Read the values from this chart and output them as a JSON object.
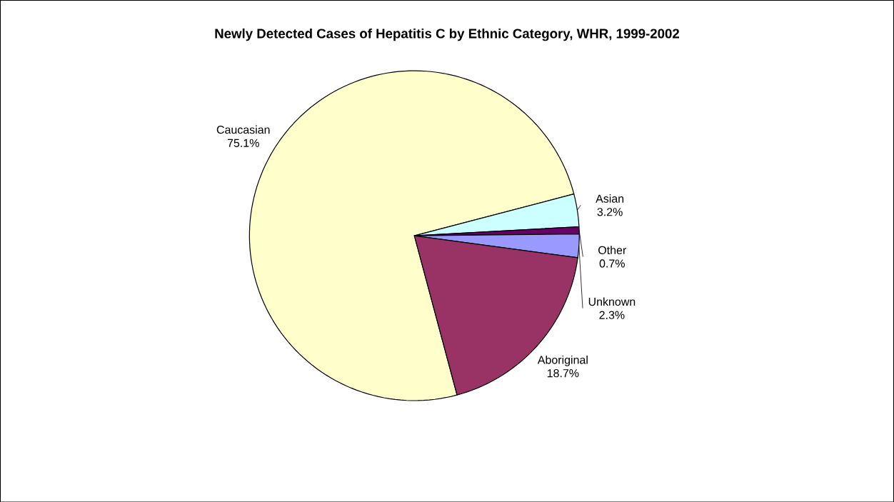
{
  "chart_data": {
    "type": "pie",
    "title": "Newly Detected Cases of Hepatitis C by Ethnic Category, WHR, 1999-2002",
    "categories": [
      "Caucasian",
      "Asian",
      "Other",
      "Unknown",
      "Aboriginal"
    ],
    "values": [
      75.1,
      3.2,
      0.7,
      2.3,
      18.7
    ],
    "value_labels": [
      "75.1%",
      "3.2%",
      "0.7%",
      "2.3%",
      "18.7%"
    ],
    "colors": [
      "#ffffcc",
      "#ccffff",
      "#660066",
      "#9999ff",
      "#993366"
    ]
  }
}
